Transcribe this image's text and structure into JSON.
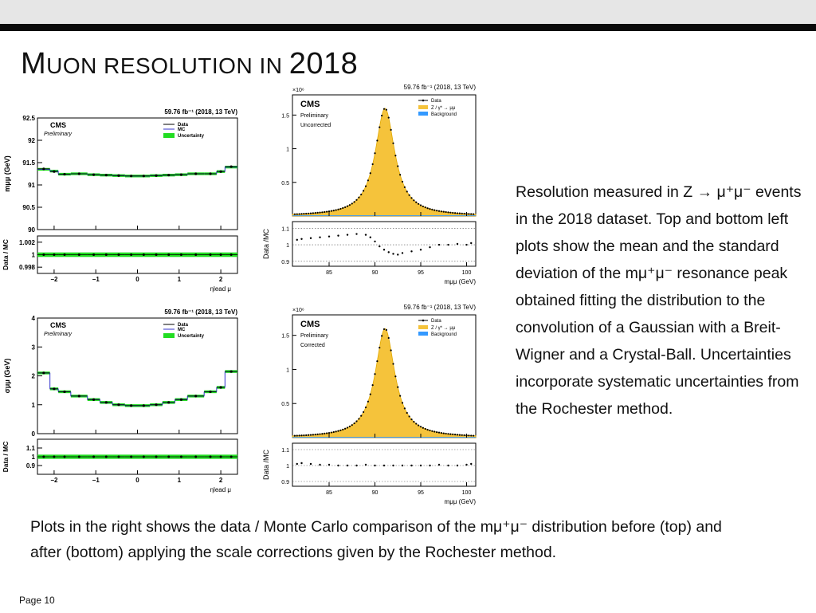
{
  "slide": {
    "title_initial": "M",
    "title_rest": "UON RESOLUTION IN ",
    "title_year": "2018",
    "side_text": "Resolution measured in Z → μ⁺μ⁻ events in the 2018 dataset. Top and bottom left plots show the mean and the standard deviation of the mμ⁺μ⁻ resonance peak obtained fitting the distribution to the convolution of a Gaussian with a Breit-Wigner and a Crystal-Ball. Uncertainties incorporate systematic uncertainties from the Rochester method.",
    "bottom_text": "Plots in the right shows the data / Monte Carlo comparison of the mμ⁺μ⁻ distribution before (top) and after (bottom) applying the scale corrections given by the Rochester method.",
    "page_label": "Page 10"
  },
  "chart_data": [
    {
      "id": "mean_vs_eta",
      "type": "line",
      "lumi_label": "59.76 fb⁻¹ (2018, 13 TeV)",
      "cms_label": "CMS",
      "status_label": "Preliminary",
      "legend": [
        "Data",
        "MC",
        "Uncertainty"
      ],
      "ylabel": "mμμ (GeV)",
      "xlabel": "ηlead μ",
      "ylim": [
        90,
        92.5
      ],
      "xlim": [
        -2.4,
        2.4
      ],
      "yticks": [
        "92.5",
        "92",
        "91.5",
        "91",
        "90.5",
        "90"
      ],
      "xticks": [
        "−2",
        "−1",
        "0",
        "1",
        "2"
      ],
      "bin_edges": [
        -2.4,
        -2.1,
        -1.9,
        -1.6,
        -1.2,
        -0.9,
        -0.6,
        -0.3,
        0,
        0.3,
        0.6,
        0.9,
        1.2,
        1.6,
        1.9,
        2.1,
        2.4
      ],
      "mc": [
        91.35,
        91.31,
        91.24,
        91.25,
        91.23,
        91.22,
        91.21,
        91.2,
        91.2,
        91.21,
        91.22,
        91.23,
        91.25,
        91.25,
        91.3,
        91.4
      ],
      "data": [
        91.36,
        91.3,
        91.24,
        91.25,
        91.23,
        91.22,
        91.21,
        91.2,
        91.2,
        91.21,
        91.22,
        91.23,
        91.25,
        91.25,
        91.3,
        91.41
      ],
      "ratio_label": "Data / MC",
      "ratio_ylim": [
        0.997,
        1.003
      ],
      "ratio_yticks": [
        "1.002",
        "1",
        "0.998"
      ],
      "ratio": [
        1.0,
        1.0,
        1.0,
        1.0,
        1.0,
        1.0,
        1.0,
        1.0,
        1.0,
        1.0,
        1.0,
        1.0,
        1.0,
        1.0,
        1.0,
        1.0
      ]
    },
    {
      "id": "sigma_vs_eta",
      "type": "line",
      "lumi_label": "59.76 fb⁻¹ (2018, 13 TeV)",
      "cms_label": "CMS",
      "status_label": "Preliminary",
      "legend": [
        "Data",
        "MC",
        "Uncertainty"
      ],
      "ylabel": "σμμ (GeV)",
      "xlabel": "ηlead μ",
      "ylim": [
        0,
        4
      ],
      "xlim": [
        -2.4,
        2.4
      ],
      "yticks": [
        "4",
        "3",
        "2",
        "1",
        "0"
      ],
      "xticks": [
        "−2",
        "−1",
        "0",
        "1",
        "2"
      ],
      "bin_edges": [
        -2.4,
        -2.1,
        -1.9,
        -1.6,
        -1.2,
        -0.9,
        -0.6,
        -0.3,
        0,
        0.3,
        0.6,
        0.9,
        1.2,
        1.6,
        1.9,
        2.1,
        2.4
      ],
      "mc": [
        2.1,
        1.55,
        1.45,
        1.3,
        1.18,
        1.08,
        1.0,
        0.97,
        0.97,
        1.0,
        1.08,
        1.18,
        1.3,
        1.45,
        1.6,
        2.15
      ],
      "data": [
        2.1,
        1.55,
        1.45,
        1.3,
        1.18,
        1.08,
        1.0,
        0.97,
        0.97,
        1.0,
        1.08,
        1.18,
        1.3,
        1.45,
        1.6,
        2.15
      ],
      "ratio_label": "Data / MC",
      "ratio_ylim": [
        0.8,
        1.2
      ],
      "ratio_yticks": [
        "1.1",
        "1",
        "0.9"
      ],
      "ratio": [
        1.0,
        1.0,
        1.0,
        1.0,
        1.0,
        1.0,
        1.0,
        1.0,
        1.0,
        1.0,
        1.0,
        1.0,
        1.0,
        1.0,
        1.0,
        1.0
      ]
    },
    {
      "id": "mass_uncorrected",
      "type": "area",
      "lumi_label": "59.76 fb⁻¹ (2018, 13 TeV)",
      "cms_label": "CMS",
      "status_label": "Preliminary",
      "correction_label": "Uncorrected",
      "scale_label": "×10⁶",
      "legend": [
        "Data",
        "Z / γ* → μμ",
        "Background"
      ],
      "xlabel": "mμμ (GeV)",
      "ratio_label": "Data /MC",
      "ylim": [
        0,
        1.8
      ],
      "yticks": [
        "1.5",
        "1",
        "0.5"
      ],
      "xlim": [
        81,
        101
      ],
      "xticks": [
        "85",
        "90",
        "95",
        "100"
      ],
      "peak_mean": 91.1,
      "peak_height": 1.6,
      "peak_width_gamma": 2.6,
      "ratio_ylim": [
        0.87,
        1.14
      ],
      "ratio_yticks": [
        "1.1",
        "1",
        "0.9"
      ],
      "ratio_x": [
        81.5,
        82,
        83,
        84,
        85,
        86,
        87,
        88,
        89,
        89.5,
        90,
        90.5,
        91,
        91.5,
        92,
        92.5,
        93,
        94,
        95,
        96,
        97,
        98,
        99,
        100,
        100.5
      ],
      "ratio_y": [
        1.03,
        1.035,
        1.04,
        1.045,
        1.05,
        1.055,
        1.06,
        1.065,
        1.06,
        1.045,
        1.02,
        0.99,
        0.97,
        0.955,
        0.945,
        0.94,
        0.95,
        0.96,
        0.97,
        0.985,
        1.0,
        1.0,
        1.005,
        1.0,
        1.01
      ]
    },
    {
      "id": "mass_corrected",
      "type": "area",
      "lumi_label": "59.76 fb⁻¹ (2018, 13 TeV)",
      "cms_label": "CMS",
      "status_label": "Preliminary",
      "correction_label": "Corrected",
      "scale_label": "×10⁶",
      "legend": [
        "Data",
        "Z / γ* → μμ",
        "Background"
      ],
      "xlabel": "mμμ (GeV)",
      "ratio_label": "Data /MC",
      "ylim": [
        0,
        1.8
      ],
      "yticks": [
        "1.5",
        "1",
        "0.5"
      ],
      "xlim": [
        81,
        101
      ],
      "xticks": [
        "85",
        "90",
        "95",
        "100"
      ],
      "peak_mean": 91.1,
      "peak_height": 1.6,
      "peak_width_gamma": 2.6,
      "ratio_ylim": [
        0.87,
        1.14
      ],
      "ratio_yticks": [
        "1.1",
        "1",
        "0.9"
      ],
      "ratio_x": [
        81.5,
        82,
        83,
        84,
        85,
        86,
        87,
        88,
        89,
        90,
        91,
        92,
        93,
        94,
        95,
        96,
        97,
        98,
        99,
        100,
        100.5
      ],
      "ratio_y": [
        1.01,
        1.015,
        1.01,
        1.005,
        1.005,
        1.0,
        1.0,
        1.0,
        1.005,
        1.0,
        1.0,
        1.0,
        1.0,
        1.0,
        1.0,
        1.0,
        1.005,
        1.0,
        1.0,
        1.005,
        1.01
      ]
    }
  ]
}
